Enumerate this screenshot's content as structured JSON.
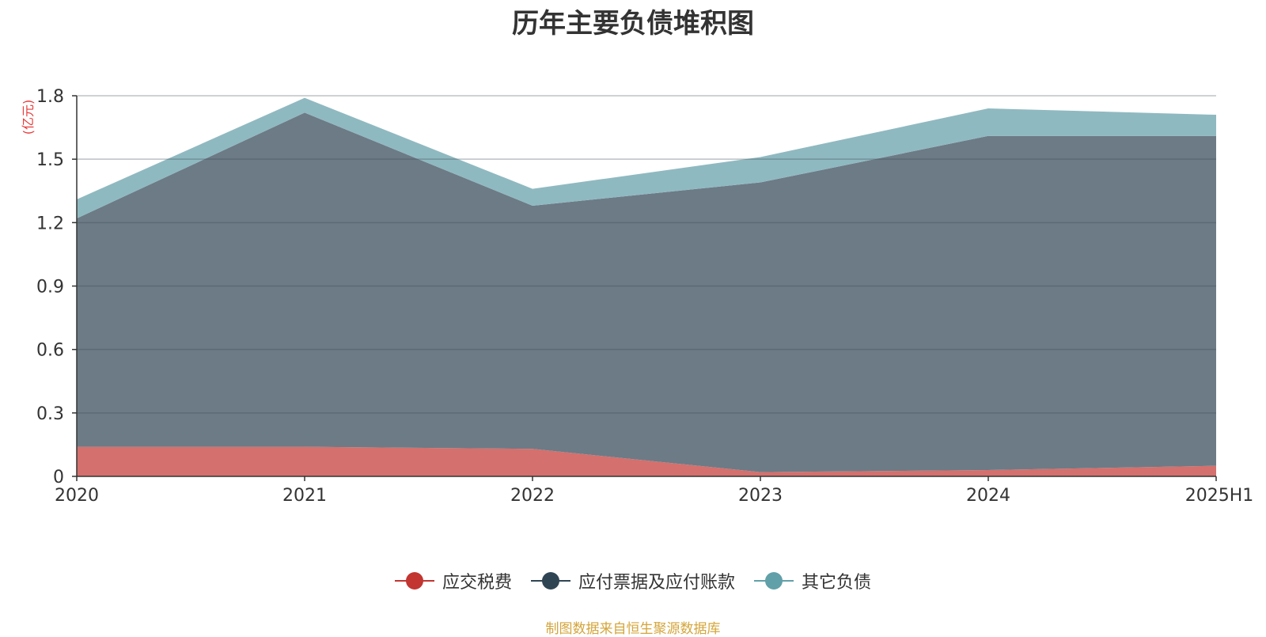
{
  "chart_data": {
    "type": "area",
    "stacked": true,
    "title": "历年主要负债堆积图",
    "y_unit_label": "(亿元)",
    "categories": [
      "2020",
      "2021",
      "2022",
      "2023",
      "2024",
      "2025H1"
    ],
    "ylim": [
      0,
      1.8
    ],
    "y_ticks": [
      "0",
      "0.3",
      "0.6",
      "0.9",
      "1.2",
      "1.5",
      "1.8"
    ],
    "y_tick_values": [
      0,
      0.3,
      0.6,
      0.9,
      1.2,
      1.5,
      1.8
    ],
    "grid": true,
    "legend_position": "bottom",
    "series": [
      {
        "name": "应交税费",
        "values": [
          0.14,
          0.14,
          0.13,
          0.02,
          0.03,
          0.05
        ],
        "color": "#c23531",
        "fill": "#d4706d"
      },
      {
        "name": "应付票据及应付账款",
        "values": [
          1.08,
          1.58,
          1.15,
          1.37,
          1.58,
          1.56
        ],
        "color": "#2f4554",
        "fill": "#6d7b86"
      },
      {
        "name": "其它负债",
        "values": [
          0.09,
          0.07,
          0.08,
          0.12,
          0.13,
          0.1
        ],
        "color": "#61a0a8",
        "fill": "#8fb9c0"
      }
    ]
  },
  "source_note": "制图数据来自恒生聚源数据库"
}
